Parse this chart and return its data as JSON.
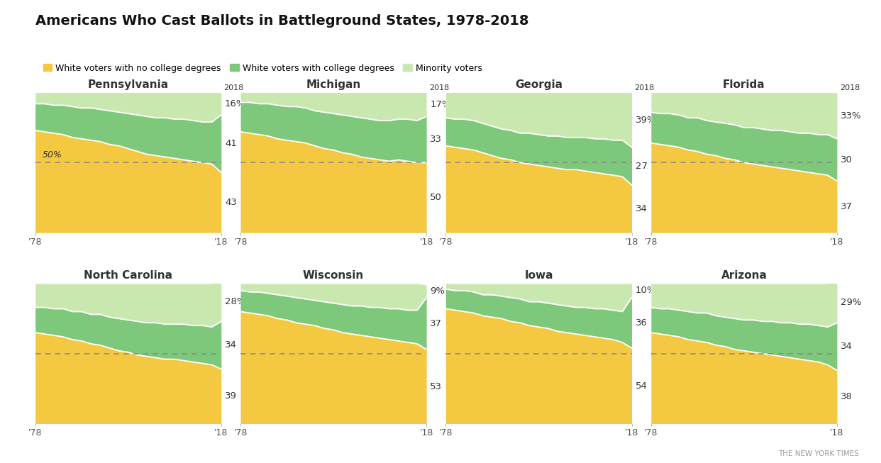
{
  "title": "Americans Who Cast Ballots in Battleground States, 1978-2018",
  "legend_items": [
    {
      "label": "White voters with no college degrees",
      "color": "#F5C842"
    },
    {
      "label": "White voters with college degrees",
      "color": "#7DC87A"
    },
    {
      "label": "Minority voters",
      "color": "#C8E8B0"
    }
  ],
  "states": [
    {
      "name": "Pennsylvania",
      "show_50_label": true,
      "labels_2018": {
        "minority_str": "16%",
        "college_str": "41",
        "no_college_str": "43"
      },
      "no_college": [
        73,
        72,
        71,
        70,
        68,
        67,
        66,
        65,
        63,
        62,
        60,
        58,
        56,
        55,
        54,
        53,
        52,
        51,
        50,
        49,
        43
      ],
      "college": [
        19,
        20,
        20,
        21,
        22,
        22,
        23,
        23,
        24,
        24,
        25,
        26,
        27,
        27,
        28,
        28,
        29,
        29,
        29,
        30,
        41
      ],
      "minority": [
        8,
        8,
        9,
        9,
        10,
        11,
        11,
        12,
        13,
        14,
        15,
        16,
        17,
        18,
        18,
        19,
        19,
        20,
        21,
        21,
        16
      ]
    },
    {
      "name": "Michigan",
      "show_50_label": false,
      "labels_2018": {
        "minority_str": "17%",
        "college_str": "33",
        "no_college_str": "50"
      },
      "no_college": [
        72,
        71,
        70,
        69,
        67,
        66,
        65,
        64,
        62,
        60,
        59,
        57,
        56,
        54,
        53,
        52,
        51,
        52,
        51,
        50,
        50
      ],
      "college": [
        21,
        22,
        22,
        23,
        24,
        24,
        25,
        25,
        25,
        26,
        26,
        27,
        27,
        28,
        28,
        28,
        29,
        29,
        30,
        30,
        33
      ],
      "minority": [
        7,
        7,
        8,
        8,
        9,
        10,
        10,
        11,
        13,
        14,
        15,
        16,
        17,
        18,
        19,
        20,
        20,
        19,
        19,
        20,
        17
      ]
    },
    {
      "name": "Georgia",
      "show_50_label": false,
      "labels_2018": {
        "minority_str": "39%",
        "college_str": "27",
        "no_college_str": "34"
      },
      "no_college": [
        62,
        61,
        60,
        59,
        57,
        55,
        53,
        52,
        50,
        49,
        48,
        47,
        46,
        45,
        45,
        44,
        43,
        42,
        41,
        40,
        34
      ],
      "college": [
        20,
        20,
        21,
        21,
        21,
        21,
        21,
        21,
        21,
        22,
        22,
        22,
        23,
        23,
        23,
        24,
        24,
        25,
        25,
        26,
        27
      ],
      "minority": [
        18,
        19,
        19,
        20,
        22,
        24,
        26,
        27,
        29,
        29,
        30,
        31,
        31,
        32,
        32,
        32,
        33,
        33,
        34,
        34,
        39
      ]
    },
    {
      "name": "Florida",
      "show_50_label": false,
      "labels_2018": {
        "minority_str": "33%",
        "college_str": "30",
        "no_college_str": "37"
      },
      "no_college": [
        64,
        63,
        62,
        61,
        59,
        58,
        56,
        55,
        53,
        52,
        50,
        49,
        48,
        47,
        46,
        45,
        44,
        43,
        42,
        41,
        37
      ],
      "college": [
        22,
        22,
        23,
        23,
        23,
        24,
        24,
        24,
        25,
        25,
        25,
        26,
        26,
        26,
        27,
        27,
        27,
        28,
        28,
        29,
        30
      ],
      "minority": [
        14,
        15,
        15,
        16,
        18,
        18,
        20,
        21,
        22,
        23,
        25,
        25,
        26,
        27,
        27,
        28,
        29,
        29,
        30,
        30,
        33
      ]
    },
    {
      "name": "North Carolina",
      "show_50_label": false,
      "labels_2018": {
        "minority_str": "28%",
        "college_str": "34",
        "no_college_str": "39"
      },
      "no_college": [
        65,
        64,
        63,
        62,
        60,
        59,
        57,
        56,
        54,
        52,
        51,
        49,
        48,
        47,
        46,
        46,
        45,
        44,
        43,
        42,
        39
      ],
      "college": [
        18,
        19,
        19,
        20,
        20,
        21,
        21,
        22,
        22,
        23,
        23,
        24,
        24,
        25,
        25,
        25,
        26,
        26,
        27,
        27,
        34
      ],
      "minority": [
        17,
        17,
        18,
        18,
        20,
        20,
        22,
        22,
        24,
        25,
        26,
        27,
        28,
        28,
        29,
        29,
        29,
        30,
        30,
        31,
        28
      ]
    },
    {
      "name": "Wisconsin",
      "show_50_label": false,
      "labels_2018": {
        "minority_str": "9%",
        "college_str": "37",
        "no_college_str": "53"
      },
      "no_college": [
        80,
        79,
        78,
        77,
        75,
        74,
        72,
        71,
        70,
        68,
        67,
        65,
        64,
        63,
        62,
        61,
        60,
        59,
        58,
        57,
        53
      ],
      "college": [
        15,
        15,
        16,
        16,
        17,
        17,
        18,
        18,
        18,
        19,
        19,
        20,
        20,
        21,
        21,
        22,
        22,
        23,
        23,
        24,
        37
      ],
      "minority": [
        5,
        6,
        6,
        7,
        8,
        9,
        10,
        11,
        12,
        13,
        14,
        15,
        16,
        16,
        17,
        17,
        18,
        18,
        19,
        19,
        9
      ]
    },
    {
      "name": "Iowa",
      "show_50_label": false,
      "labels_2018": {
        "minority_str": "10%",
        "college_str": "36",
        "no_college_str": "54"
      },
      "no_college": [
        82,
        81,
        80,
        79,
        77,
        76,
        75,
        73,
        72,
        70,
        69,
        68,
        66,
        65,
        64,
        63,
        62,
        61,
        60,
        58,
        54
      ],
      "college": [
        14,
        14,
        15,
        15,
        15,
        16,
        16,
        17,
        17,
        17,
        18,
        18,
        19,
        19,
        19,
        20,
        20,
        21,
        21,
        22,
        36
      ],
      "minority": [
        4,
        5,
        5,
        6,
        8,
        8,
        9,
        10,
        11,
        13,
        13,
        14,
        15,
        16,
        17,
        17,
        18,
        18,
        19,
        20,
        10
      ]
    },
    {
      "name": "Arizona",
      "show_50_label": false,
      "labels_2018": {
        "minority_str": "29%",
        "college_str": "34",
        "no_college_str": "38"
      },
      "no_college": [
        65,
        64,
        63,
        62,
        60,
        59,
        58,
        56,
        55,
        53,
        52,
        51,
        50,
        49,
        48,
        47,
        46,
        45,
        44,
        42,
        38
      ],
      "college": [
        18,
        18,
        19,
        19,
        20,
        20,
        21,
        21,
        21,
        22,
        22,
        23,
        23,
        24,
        24,
        25,
        25,
        26,
        26,
        27,
        34
      ],
      "minority": [
        17,
        18,
        18,
        19,
        20,
        21,
        21,
        23,
        24,
        25,
        26,
        26,
        27,
        27,
        28,
        28,
        29,
        29,
        30,
        31,
        29
      ]
    }
  ],
  "colors": {
    "no_college": "#F5C842",
    "college": "#7DC87A",
    "minority": "#C8E8B0",
    "dashed_line": "#888888",
    "background": "#ffffff",
    "text": "#333333"
  },
  "years": [
    1978,
    1980,
    1982,
    1984,
    1986,
    1988,
    1990,
    1992,
    1994,
    1996,
    1998,
    2000,
    2002,
    2004,
    2006,
    2008,
    2010,
    2012,
    2014,
    2016,
    2018
  ]
}
